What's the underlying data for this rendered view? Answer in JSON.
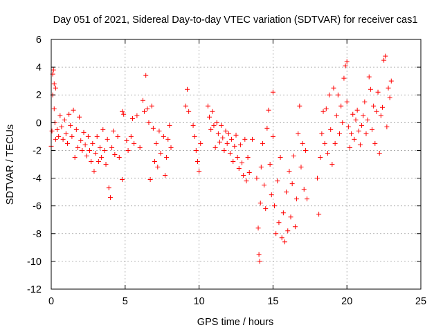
{
  "colors": {
    "background": "#ffffff",
    "axis": "#000000",
    "grid": "#a0a0a0",
    "marker": "#ff0000"
  },
  "chart_data": {
    "type": "scatter",
    "title": "Day 051 of 2021, Sidereal Day-to-day VTEC variation (SDTVAR) for receiver cas1",
    "xlabel": "GPS time / hours",
    "ylabel": "SDTVAR / TECUs",
    "xlim": [
      0,
      25
    ],
    "ylim": [
      -12,
      6
    ],
    "xticks": [
      0,
      5,
      10,
      15,
      20,
      25
    ],
    "yticks": [
      -12,
      -10,
      -8,
      -6,
      -4,
      -2,
      0,
      2,
      4,
      6
    ],
    "grid": true,
    "marker": "+",
    "series": [
      {
        "name": "SDTVAR",
        "points": [
          [
            0.0,
            -1.7
          ],
          [
            0.05,
            -0.6
          ],
          [
            0.1,
            2.0
          ],
          [
            0.1,
            3.5
          ],
          [
            0.15,
            3.8
          ],
          [
            0.2,
            2.8
          ],
          [
            0.2,
            1.0
          ],
          [
            0.25,
            0.0
          ],
          [
            0.3,
            -1.2
          ],
          [
            0.3,
            2.5
          ],
          [
            0.4,
            -0.5
          ],
          [
            0.5,
            -1.0
          ],
          [
            0.6,
            0.5
          ],
          [
            0.7,
            -0.3
          ],
          [
            0.8,
            -1.2
          ],
          [
            0.9,
            0.2
          ],
          [
            1.0,
            -0.8
          ],
          [
            1.1,
            -1.5
          ],
          [
            1.2,
            0.6
          ],
          [
            1.3,
            -0.2
          ],
          [
            1.4,
            -1.0
          ],
          [
            1.5,
            0.9
          ],
          [
            1.6,
            -2.5
          ],
          [
            1.7,
            -0.5
          ],
          [
            1.8,
            -1.8
          ],
          [
            1.9,
            0.4
          ],
          [
            2.0,
            -1.3
          ],
          [
            2.1,
            -2.0
          ],
          [
            2.2,
            -0.7
          ],
          [
            2.3,
            -1.6
          ],
          [
            2.4,
            -2.4
          ],
          [
            2.5,
            -1.0
          ],
          [
            2.6,
            -2.0
          ],
          [
            2.7,
            -2.8
          ],
          [
            2.8,
            -1.5
          ],
          [
            2.9,
            -3.5
          ],
          [
            3.0,
            -2.2
          ],
          [
            3.1,
            -1.0
          ],
          [
            3.2,
            -2.8
          ],
          [
            3.3,
            -1.8
          ],
          [
            3.4,
            -2.5
          ],
          [
            3.5,
            -0.5
          ],
          [
            3.6,
            -2.0
          ],
          [
            3.7,
            -3.0
          ],
          [
            3.8,
            -1.2
          ],
          [
            3.9,
            -4.7
          ],
          [
            4.0,
            -5.4
          ],
          [
            4.1,
            -1.8
          ],
          [
            4.2,
            -0.6
          ],
          [
            4.3,
            -2.3
          ],
          [
            4.5,
            -1.0
          ],
          [
            4.6,
            -2.5
          ],
          [
            4.8,
            -4.1
          ],
          [
            4.8,
            0.8
          ],
          [
            4.9,
            0.6
          ],
          [
            5.1,
            -1.3
          ],
          [
            5.2,
            -2.0
          ],
          [
            5.4,
            -1.0
          ],
          [
            5.5,
            0.3
          ],
          [
            5.6,
            -1.5
          ],
          [
            5.8,
            0.5
          ],
          [
            6.0,
            -1.8
          ],
          [
            6.2,
            1.6
          ],
          [
            6.3,
            0.8
          ],
          [
            6.4,
            3.4
          ],
          [
            6.5,
            1.0
          ],
          [
            6.6,
            0.0
          ],
          [
            6.7,
            -4.1
          ],
          [
            6.8,
            1.2
          ],
          [
            6.9,
            -0.4
          ],
          [
            7.0,
            -2.8
          ],
          [
            7.1,
            -1.5
          ],
          [
            7.2,
            -3.2
          ],
          [
            7.3,
            -0.6
          ],
          [
            7.4,
            -2.2
          ],
          [
            7.6,
            -1.0
          ],
          [
            7.7,
            -3.8
          ],
          [
            7.8,
            -2.5
          ],
          [
            7.9,
            -1.2
          ],
          [
            8.0,
            -0.2
          ],
          [
            8.1,
            -1.8
          ],
          [
            9.1,
            1.2
          ],
          [
            9.2,
            2.4
          ],
          [
            9.3,
            0.8
          ],
          [
            9.6,
            -0.2
          ],
          [
            9.7,
            -1.0
          ],
          [
            9.8,
            -2.0
          ],
          [
            9.9,
            -2.8
          ],
          [
            10.0,
            -3.5
          ],
          [
            10.1,
            -1.5
          ],
          [
            10.6,
            1.2
          ],
          [
            10.7,
            0.4
          ],
          [
            10.8,
            -0.5
          ],
          [
            10.9,
            0.8
          ],
          [
            11.0,
            -0.2
          ],
          [
            11.1,
            -1.8
          ],
          [
            11.2,
            0.0
          ],
          [
            11.3,
            -0.8
          ],
          [
            11.4,
            -1.4
          ],
          [
            11.5,
            -0.2
          ],
          [
            11.6,
            -1.1
          ],
          [
            11.7,
            -2.0
          ],
          [
            11.8,
            -0.6
          ],
          [
            11.9,
            -1.5
          ],
          [
            12.0,
            -0.8
          ],
          [
            12.1,
            -2.2
          ],
          [
            12.2,
            -1.2
          ],
          [
            12.3,
            -2.8
          ],
          [
            12.4,
            -1.7
          ],
          [
            12.5,
            -0.9
          ],
          [
            12.6,
            -2.5
          ],
          [
            12.7,
            -3.3
          ],
          [
            12.8,
            -1.6
          ],
          [
            12.9,
            -2.9
          ],
          [
            13.0,
            -3.8
          ],
          [
            13.1,
            -1.2
          ],
          [
            13.2,
            -4.2
          ],
          [
            13.3,
            -2.5
          ],
          [
            13.4,
            -3.6
          ],
          [
            13.6,
            -1.2
          ],
          [
            13.9,
            -4.0
          ],
          [
            14.0,
            -7.6
          ],
          [
            14.05,
            -9.5
          ],
          [
            14.1,
            -10.0
          ],
          [
            14.15,
            -5.8
          ],
          [
            14.2,
            -3.2
          ],
          [
            14.3,
            -1.5
          ],
          [
            14.4,
            -4.5
          ],
          [
            14.5,
            -6.2
          ],
          [
            14.6,
            -0.4
          ],
          [
            14.7,
            0.9
          ],
          [
            14.8,
            -3.0
          ],
          [
            14.9,
            -5.2
          ],
          [
            15.0,
            2.2
          ],
          [
            15.0,
            -1.0
          ],
          [
            15.1,
            -6.0
          ],
          [
            15.2,
            -8.0
          ],
          [
            15.3,
            -4.2
          ],
          [
            15.4,
            -7.2
          ],
          [
            15.5,
            -2.5
          ],
          [
            15.6,
            -8.3
          ],
          [
            15.7,
            -6.5
          ],
          [
            15.8,
            -8.6
          ],
          [
            15.9,
            -5.0
          ],
          [
            16.0,
            -7.8
          ],
          [
            16.1,
            -3.5
          ],
          [
            16.2,
            -6.8
          ],
          [
            16.3,
            -4.4
          ],
          [
            16.4,
            -2.4
          ],
          [
            16.5,
            -7.5
          ],
          [
            16.6,
            -5.5
          ],
          [
            16.7,
            -0.8
          ],
          [
            16.8,
            1.2
          ],
          [
            16.9,
            -3.2
          ],
          [
            17.0,
            -1.5
          ],
          [
            17.1,
            -4.8
          ],
          [
            17.2,
            -2.0
          ],
          [
            17.3,
            -5.5
          ],
          [
            18.0,
            -4.0
          ],
          [
            18.1,
            -6.6
          ],
          [
            18.2,
            -2.5
          ],
          [
            18.3,
            -0.8
          ],
          [
            18.4,
            0.8
          ],
          [
            18.5,
            -1.5
          ],
          [
            18.6,
            1.0
          ],
          [
            18.7,
            -2.2
          ],
          [
            18.8,
            2.0
          ],
          [
            18.9,
            -0.5
          ],
          [
            19.0,
            -3.0
          ],
          [
            19.1,
            2.5
          ],
          [
            19.2,
            -1.5
          ],
          [
            19.3,
            0.5
          ],
          [
            19.4,
            2.0
          ],
          [
            19.5,
            -0.8
          ],
          [
            19.6,
            1.2
          ],
          [
            19.7,
            0.0
          ],
          [
            19.8,
            3.2
          ],
          [
            19.9,
            4.1
          ],
          [
            20.0,
            4.4
          ],
          [
            20.0,
            1.5
          ],
          [
            20.1,
            -0.3
          ],
          [
            20.2,
            -1.8
          ],
          [
            20.3,
            -0.8
          ],
          [
            20.4,
            0.6
          ],
          [
            20.5,
            -1.2
          ],
          [
            20.6,
            0.2
          ],
          [
            20.7,
            0.9
          ],
          [
            20.8,
            -0.6
          ],
          [
            20.9,
            -1.6
          ],
          [
            21.0,
            -0.2
          ],
          [
            21.1,
            0.5
          ],
          [
            21.2,
            1.5
          ],
          [
            21.3,
            -0.8
          ],
          [
            21.4,
            0.2
          ],
          [
            21.5,
            3.3
          ],
          [
            21.6,
            2.4
          ],
          [
            21.7,
            -0.5
          ],
          [
            21.8,
            1.2
          ],
          [
            21.9,
            -1.5
          ],
          [
            22.0,
            0.8
          ],
          [
            22.1,
            2.2
          ],
          [
            22.2,
            -2.2
          ],
          [
            22.3,
            0.5
          ],
          [
            22.4,
            1.1
          ],
          [
            22.5,
            4.5
          ],
          [
            22.6,
            4.8
          ],
          [
            22.7,
            -0.3
          ],
          [
            22.8,
            2.5
          ],
          [
            22.9,
            1.8
          ],
          [
            23.0,
            3.0
          ]
        ]
      }
    ]
  }
}
